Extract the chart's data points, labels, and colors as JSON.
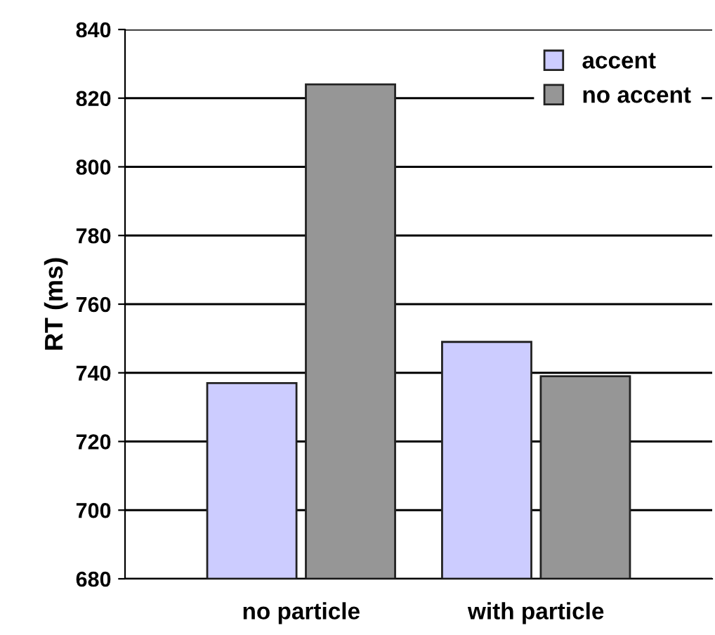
{
  "chart_data": {
    "type": "bar",
    "ylabel": "RT (ms)",
    "categories": [
      "no particle",
      "with particle"
    ],
    "series": [
      {
        "name": "accent",
        "color": "#ccccff",
        "values": [
          737,
          749
        ]
      },
      {
        "name": "no accent",
        "color": "#969696",
        "values": [
          824,
          739
        ]
      }
    ],
    "ylim": [
      680,
      840
    ],
    "yticks": [
      680,
      700,
      720,
      740,
      760,
      780,
      800,
      820,
      840
    ],
    "grid": "y",
    "legend": "top right"
  }
}
